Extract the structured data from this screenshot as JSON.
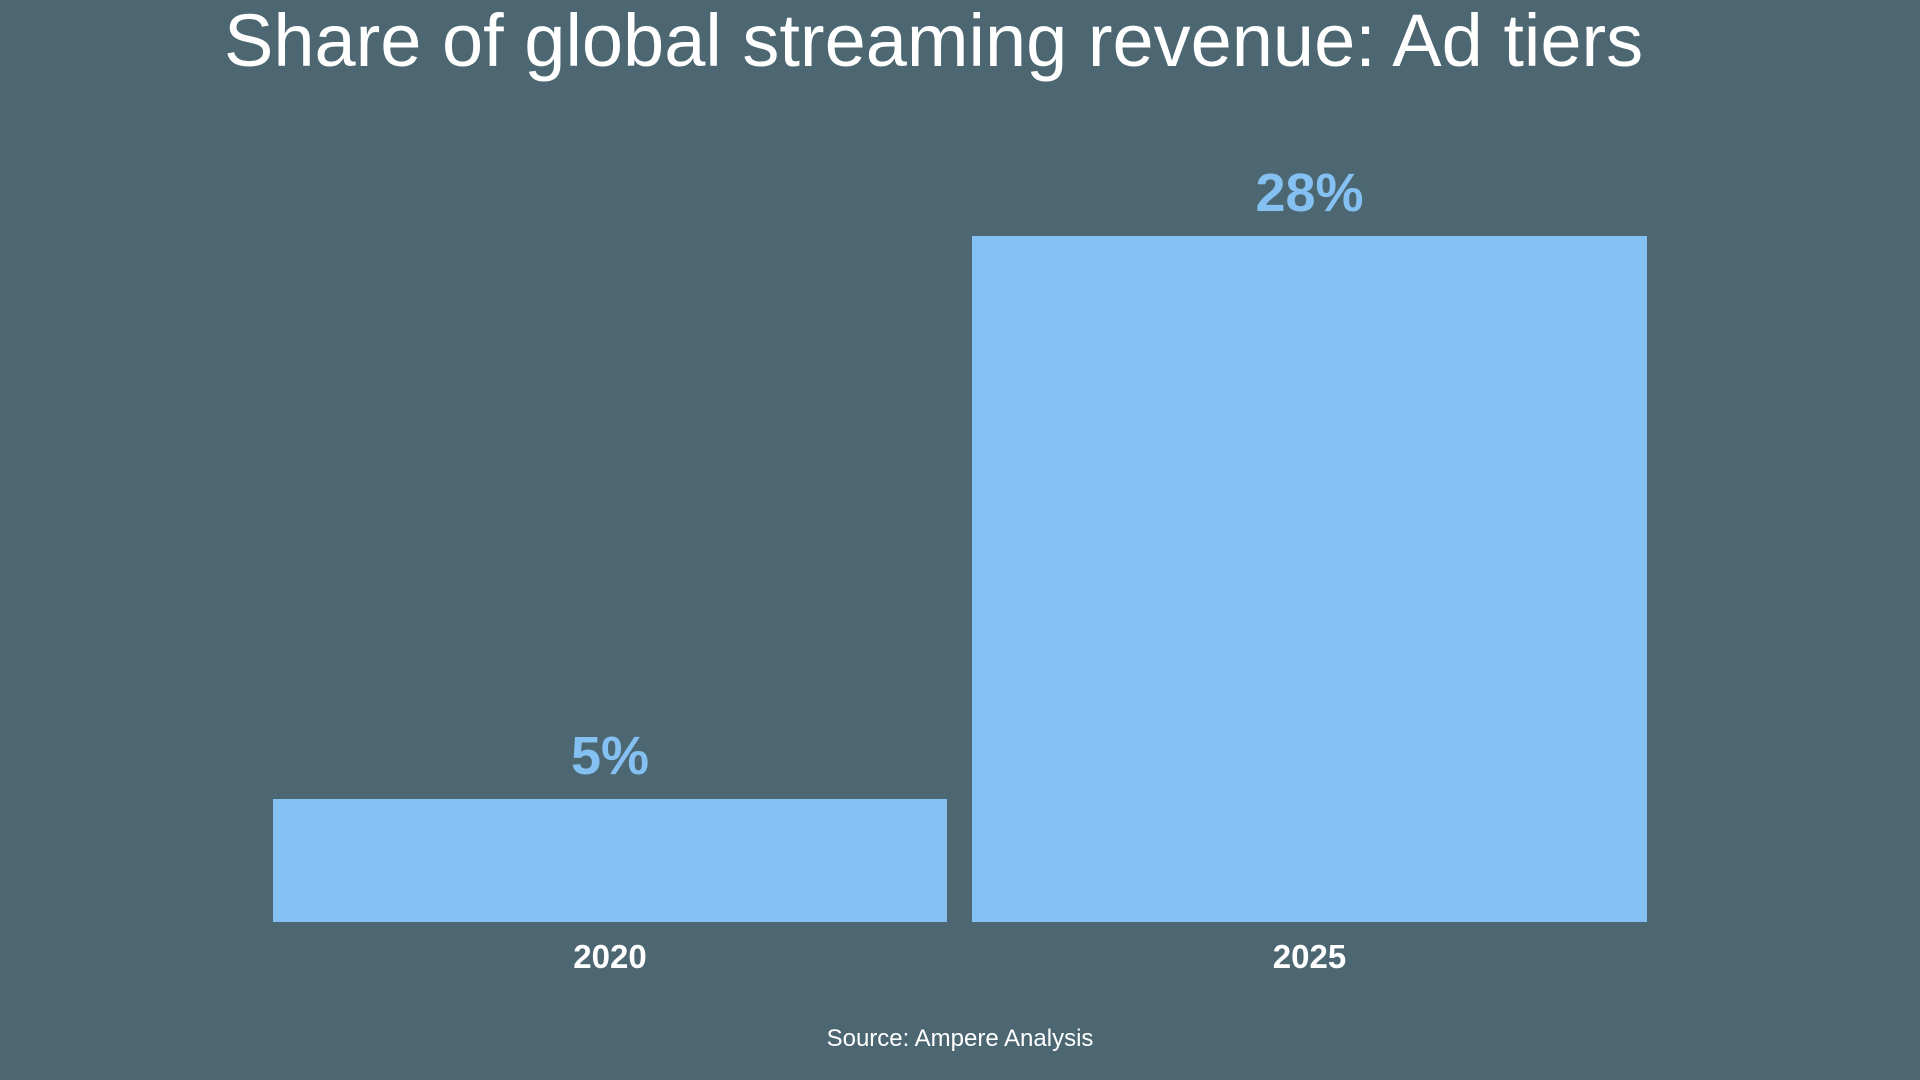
{
  "chart_data": {
    "type": "bar",
    "title": "Share of global streaming revenue: Ad tiers",
    "categories": [
      "2020",
      "2025"
    ],
    "values": [
      5,
      28
    ],
    "value_labels": [
      "5%",
      "28%"
    ],
    "source": "Source: Ampere Analysis",
    "xlabel": "",
    "ylabel": "",
    "ylim": [
      0,
      28
    ],
    "grid": false,
    "legend": "none"
  },
  "colors": {
    "background": "#4C6771",
    "bar": "#84C1F2",
    "value_label": "#84C1F2",
    "text": "#FFFFFF"
  }
}
